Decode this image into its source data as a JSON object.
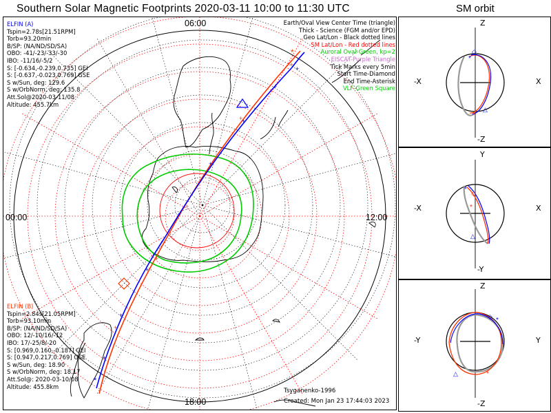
{
  "title": "Southern Solar Magnetic Footprints 2020-03-11 10:00 to 11:30 UTC",
  "orbit_title": "SM orbit",
  "map": {
    "mlt_labels": {
      "top": "06:00",
      "left": "00:00",
      "right": "12:00",
      "bottom": "18:00"
    }
  },
  "elfin_a": {
    "header": "ELFIN (A)",
    "lines": [
      "Tspin=2.78s[21.51RPM]",
      "Torb=93.20min",
      "B/SP: (NA/ND/SD/SA)",
      "OBO: -41/-23/-33/-30",
      "IBO: -11/16/-5/2",
      "S: [-0.634,-0.239,0.735] GEI",
      "S: [-0.637,-0.023,0.769] GSE",
      "S w/Sun, deg: 129.6",
      "S w/OrbNorm, deg: 135.8",
      "Att.Sol@2020-03-11/08",
      "Altitude: 455.7km"
    ]
  },
  "elfin_b": {
    "header": "ELFIN (B)",
    "lines": [
      "Tspin=2.84s[21.05RPM]",
      "Torb=93.10min",
      "B/SP: (NA/ND/SD/SA)",
      "OBO: 12/-10/16/-12",
      "IBO: 17/-25/8/-20",
      "S: [0.969,0.160,-0.187] GEI",
      "S: [0.947,0.217,0.769] GSE",
      "S w/Sun, deg: 18.90",
      "S w/OrbNorm, deg: 18.17",
      "Att.Sol@: 2020-03-10/08",
      "Altitude: 455.8km"
    ]
  },
  "legend": [
    {
      "text": "Earth/Oval View Center Time (triangle)",
      "color": "#000000"
    },
    {
      "text": "Thick - Science (FGM and/or EPD)",
      "color": "#000000"
    },
    {
      "text": "Geo Lat/Lon - Black dotted lines",
      "color": "#000000"
    },
    {
      "text": "SM Lat/Lon - Red dotted lines",
      "color": "#ff0000"
    },
    {
      "text": "Auroral Oval-Green, kp=2",
      "color": "#00cc00"
    },
    {
      "text": "EISCAT-Purple Triangle",
      "color": "#cc66cc"
    },
    {
      "text": "Tick Marks every 5min",
      "color": "#000000"
    },
    {
      "text": "Start Time-Diamond",
      "color": "#000000"
    },
    {
      "text": "End Time-Asterisk",
      "color": "#000000"
    },
    {
      "text": "VLF-Green Square",
      "color": "#00cc00"
    }
  ],
  "credits": {
    "author": "Tsyganenko-1996",
    "created": "Created: Mon Jan 23 17:44:03 2023"
  },
  "orbit_panels": [
    {
      "top": "Z",
      "bottom": "-Z",
      "left": "-X",
      "right": "X"
    },
    {
      "top": "Y",
      "bottom": "-Y",
      "left": "-X",
      "right": "X"
    },
    {
      "top": "Z",
      "bottom": "-Z",
      "left": "-Y",
      "right": "Y"
    }
  ],
  "colors": {
    "elfin_a": "#0000ff",
    "elfin_b": "#ff3300",
    "sm_grid": "#ff0000",
    "auroral_oval": "#00cc00",
    "geo_grid": "#000000"
  }
}
